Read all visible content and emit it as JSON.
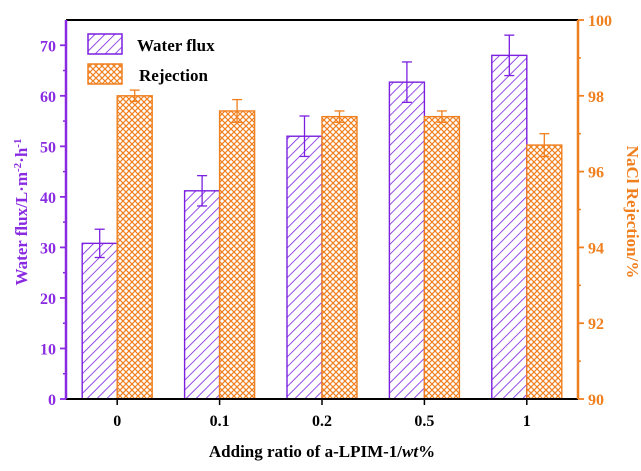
{
  "chart_data": {
    "type": "bar",
    "categories": [
      "0",
      "0.1",
      "0.2",
      "0.5",
      "1"
    ],
    "x_title_prefix": "Adding ratio of a-LPIM-1/",
    "x_title_italic": "wt",
    "x_title_suffix": "%",
    "y_left_title_base": "Water flux/L·m",
    "y_left_title_sup1": "-2",
    "y_left_title_mid": "·h",
    "y_left_title_sup2": "-1",
    "y_right_title": "NaCl Rejection/%",
    "y_left_ticks": [
      "0",
      "10",
      "20",
      "30",
      "40",
      "50",
      "60",
      "70"
    ],
    "y_right_ticks": [
      "90",
      "92",
      "94",
      "96",
      "98",
      "100"
    ],
    "y_left_range": [
      0,
      75
    ],
    "y_right_range": [
      90,
      100
    ],
    "series": [
      {
        "name": "Water flux",
        "axis": "left",
        "color": "#7b1fe0",
        "pattern": "diagonal-hatch",
        "values": [
          30.8,
          41.2,
          52.0,
          62.7,
          68.0
        ],
        "errors": [
          2.8,
          3.0,
          4.0,
          4.0,
          4.0
        ]
      },
      {
        "name": "Rejection",
        "axis": "right",
        "color": "#f07f1e",
        "pattern": "crosshatch",
        "values": [
          98.0,
          97.6,
          97.45,
          97.45,
          96.7
        ],
        "errors": [
          0.15,
          0.3,
          0.15,
          0.15,
          0.3
        ]
      }
    ],
    "left_axis_color": "#8a2be2",
    "right_axis_color": "#f07f1e"
  }
}
